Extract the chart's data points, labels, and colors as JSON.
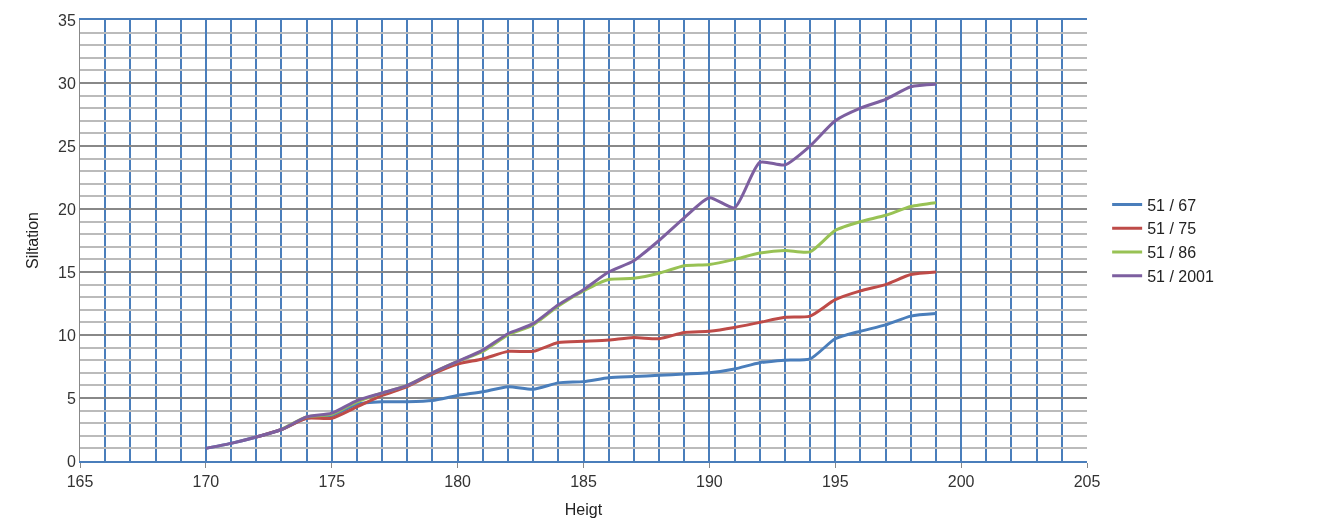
{
  "chart_data": {
    "type": "line",
    "xlabel": "Heigt",
    "ylabel": "Siltation",
    "x": [
      170,
      171,
      172,
      173,
      174,
      175,
      176,
      177,
      178,
      179,
      180,
      181,
      182,
      183,
      184,
      185,
      186,
      187,
      188,
      189,
      190,
      191,
      192,
      193,
      194,
      195,
      196,
      197,
      198,
      199
    ],
    "series": [
      {
        "name": "51 / 67",
        "color": "#4a7ebb",
        "values": [
          1,
          1.4,
          1.9,
          2.5,
          3.4,
          3.6,
          4.5,
          4.7,
          4.7,
          4.8,
          5.2,
          5.5,
          5.9,
          5.7,
          6.2,
          6.3,
          6.6,
          6.7,
          6.8,
          6.9,
          7.0,
          7.3,
          7.8,
          8.0,
          8.1,
          9.7,
          10.3,
          10.8,
          11.5,
          11.7
        ]
      },
      {
        "name": "51 / 75",
        "color": "#be4b48",
        "values": [
          null,
          null,
          1.9,
          2.5,
          3.4,
          3.4,
          4.3,
          5.2,
          5.9,
          6.9,
          7.7,
          8.1,
          8.7,
          8.7,
          9.4,
          9.5,
          9.6,
          9.8,
          9.7,
          10.2,
          10.3,
          10.6,
          11.0,
          11.4,
          11.5,
          12.8,
          13.5,
          14.0,
          14.8,
          15.0
        ]
      },
      {
        "name": "51 / 86",
        "color": "#98c254",
        "values": [
          null,
          null,
          null,
          2.5,
          3.5,
          3.7,
          4.7,
          5.4,
          6.0,
          7.0,
          7.9,
          8.7,
          10.0,
          10.8,
          12.3,
          13.5,
          14.4,
          14.5,
          14.9,
          15.5,
          15.6,
          16.0,
          16.5,
          16.7,
          16.6,
          18.3,
          19.0,
          19.5,
          20.2,
          20.5
        ]
      },
      {
        "name": "51 / 2001",
        "color": "#7d5fa0",
        "values": [
          1,
          1.4,
          1.9,
          2.5,
          3.5,
          3.8,
          4.8,
          5.4,
          6.0,
          7.0,
          7.9,
          8.8,
          10.1,
          10.9,
          12.4,
          13.6,
          15.0,
          15.9,
          17.5,
          19.3,
          20.9,
          20.1,
          23.7,
          23.5,
          25.0,
          27.0,
          28.0,
          28.7,
          29.7,
          29.9
        ]
      }
    ],
    "xlim": [
      165,
      205
    ],
    "xticks": [
      165,
      170,
      175,
      180,
      185,
      190,
      195,
      200,
      205
    ],
    "ylim": [
      0,
      35
    ],
    "yticks": [
      0,
      5,
      10,
      15,
      20,
      25,
      30,
      35
    ],
    "grid": true,
    "legend": "right",
    "marker": "none",
    "line_style": "solid"
  }
}
